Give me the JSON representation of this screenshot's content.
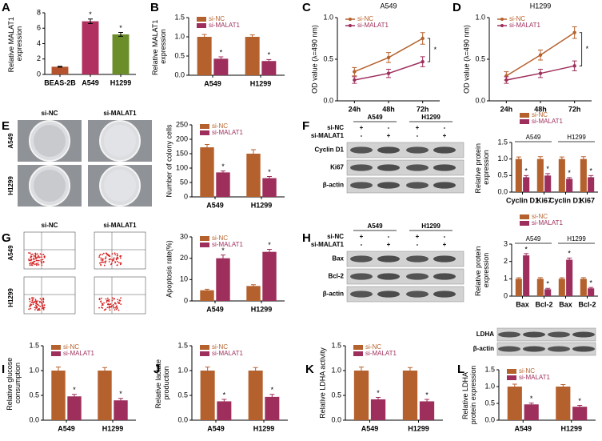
{
  "panel_letters": [
    "A",
    "B",
    "C",
    "D",
    "E",
    "F",
    "G",
    "H",
    "I",
    "J",
    "K",
    "L"
  ],
  "images": {
    "E": {
      "columns": [
        "si-NC",
        "si-MALAT1"
      ],
      "rows": [
        "A549",
        "H1299"
      ]
    },
    "G": {
      "columns": [
        "si-NC",
        "si-MALAT1"
      ],
      "rows": [
        "A549",
        "H1299"
      ]
    },
    "F": {
      "groups": [
        "A549",
        "H1299"
      ],
      "conditions": [
        {
          "name": "si-NC",
          "signs": [
            "+",
            "-",
            "+",
            "-"
          ]
        },
        {
          "name": "si-MALAT1",
          "signs": [
            "-",
            "+",
            "-",
            "+"
          ]
        }
      ],
      "bands": [
        "Cyclin D1",
        "Ki67",
        "β-actin"
      ]
    },
    "H": {
      "groups": [
        "A549",
        "H1299"
      ],
      "conditions": [
        {
          "name": "si-NC",
          "signs": [
            "+",
            "-",
            "+",
            "-"
          ]
        },
        {
          "name": "si-MALAT1",
          "signs": [
            "-",
            "+",
            "-",
            "+"
          ]
        }
      ],
      "bands": [
        "Bax",
        "Bcl-2",
        "β-actin"
      ]
    },
    "L": {
      "bands": [
        "LDHA",
        "β-actin"
      ]
    }
  },
  "chart_data": [
    {
      "type": "bar",
      "ylabel": "Relative MALAT1 expression",
      "categories": [
        "BEAS-2B",
        "A549",
        "H1299"
      ],
      "values": [
        1.0,
        6.9,
        5.2
      ],
      "errors": [
        0.05,
        0.3,
        0.25
      ],
      "colors": [
        "#b5532e",
        "#b0305f",
        "#6b8e2a"
      ],
      "annotations": [
        null,
        "*",
        "*"
      ],
      "ylim": [
        0,
        8
      ],
      "yticks": [
        0,
        2,
        4,
        6,
        8
      ]
    },
    {
      "type": "bar",
      "ylabel": "Relative MALAT1 expression",
      "categories": [
        "A549",
        "H1299"
      ],
      "legend": "upper left",
      "series": [
        {
          "name": "si-NC",
          "color": "#b5612d",
          "values": [
            1.0,
            1.0
          ],
          "errors": [
            0.06,
            0.05
          ]
        },
        {
          "name": "si-MALAT1",
          "color": "#9e2f5c",
          "values": [
            0.43,
            0.37
          ],
          "errors": [
            0.05,
            0.04
          ],
          "annotations": [
            "*",
            "*"
          ]
        }
      ],
      "ylim": [
        0,
        1.5
      ],
      "yticks": [
        {
          "value": 0,
          "label": "0.0"
        },
        {
          "value": 0.5,
          "label": "0.5"
        },
        {
          "value": 1,
          "label": "1.0"
        },
        {
          "value": 1.5,
          "label": "1.5"
        }
      ]
    },
    {
      "type": "line",
      "title": "A549",
      "ylabel": "OD value (λ=490 nm)",
      "categories": [
        "24h",
        "48h",
        "72h"
      ],
      "legend": "upper left",
      "annotation": "*",
      "series": [
        {
          "name": "si-NC",
          "color": "#b5612d",
          "values": [
            0.35,
            0.52,
            0.75
          ],
          "errors": [
            0.05,
            0.06,
            0.07
          ]
        },
        {
          "name": "si-MALAT1",
          "color": "#9e2f5c",
          "values": [
            0.25,
            0.33,
            0.47
          ],
          "errors": [
            0.04,
            0.05,
            0.06
          ]
        }
      ],
      "ylim": [
        0,
        1
      ],
      "yticks": [
        {
          "value": 0,
          "label": "0.0"
        },
        {
          "value": 0.5,
          "label": "0.5"
        },
        {
          "value": 1,
          "label": "1.0"
        }
      ]
    },
    {
      "type": "line",
      "title": "H1299",
      "ylabel": "OD value (λ=490 nm)",
      "categories": [
        "24h",
        "48h",
        "72h"
      ],
      "legend": "upper left",
      "annotation": "*",
      "series": [
        {
          "name": "si-NC",
          "color": "#b5612d",
          "values": [
            0.3,
            0.55,
            0.82
          ],
          "errors": [
            0.05,
            0.06,
            0.07
          ]
        },
        {
          "name": "si-MALAT1",
          "color": "#9e2f5c",
          "values": [
            0.25,
            0.33,
            0.42
          ],
          "errors": [
            0.04,
            0.05,
            0.06
          ]
        }
      ],
      "ylim": [
        0,
        1
      ],
      "yticks": [
        {
          "value": 0,
          "label": "0.0"
        },
        {
          "value": 0.5,
          "label": "0.5"
        },
        {
          "value": 1,
          "label": "1.0"
        }
      ]
    },
    {
      "type": "bar",
      "ylabel": "Number of colony cells",
      "categories": [
        "A549",
        "H1299"
      ],
      "legend": "upper left",
      "series": [
        {
          "name": "si-NC",
          "color": "#b5612d",
          "values": [
            172,
            150
          ],
          "errors": [
            10,
            14
          ]
        },
        {
          "name": "si-MALAT1",
          "color": "#9e2f5c",
          "values": [
            85,
            65
          ],
          "errors": [
            5,
            6
          ],
          "annotations": [
            "*",
            "*"
          ]
        }
      ],
      "ylim": [
        0,
        250
      ],
      "yticks": [
        0,
        50,
        100,
        150,
        200,
        250
      ]
    },
    {
      "type": "bar",
      "ylabel": "Relative protein expression",
      "categories": [
        "Cyclin D1",
        "Ki67",
        "Cyclin D1",
        "Ki67"
      ],
      "groups": [
        "A549",
        "H1299"
      ],
      "legend": "top",
      "series": [
        {
          "name": "si-NC",
          "color": "#b5612d",
          "values": [
            1.0,
            1.0,
            1.0,
            1.0
          ],
          "errors": [
            0.06,
            0.07,
            0.06,
            0.07
          ]
        },
        {
          "name": "si-MALAT1",
          "color": "#9e2f5c",
          "values": [
            0.45,
            0.5,
            0.4,
            0.45
          ],
          "errors": [
            0.05,
            0.06,
            0.04,
            0.05
          ],
          "annotations": [
            "*",
            "*",
            "*",
            "*"
          ]
        }
      ],
      "ylim": [
        0,
        1.5
      ],
      "yticks": [
        {
          "value": 0,
          "label": "0.0"
        },
        {
          "value": 0.5,
          "label": "0.5"
        },
        {
          "value": 1,
          "label": "1.0"
        },
        {
          "value": 1.5,
          "label": "1.5"
        }
      ]
    },
    {
      "type": "bar",
      "ylabel": "Apoptosis rate(%)",
      "categories": [
        "A549",
        "H1299"
      ],
      "legend": "upper left",
      "series": [
        {
          "name": "si-NC",
          "color": "#b5612d",
          "values": [
            5,
            7
          ],
          "errors": [
            0.5,
            0.6
          ]
        },
        {
          "name": "si-MALAT1",
          "color": "#9e2f5c",
          "values": [
            20,
            23
          ],
          "errors": [
            1.5,
            1.2
          ],
          "annotations": [
            "*",
            "*"
          ]
        }
      ],
      "ylim": [
        0,
        30
      ],
      "yticks": [
        0,
        10,
        20,
        30
      ]
    },
    {
      "type": "bar",
      "ylabel": "Relative protein expression",
      "categories": [
        "Bax",
        "Bcl-2",
        "Bax",
        "Bcl-2"
      ],
      "groups": [
        "A549",
        "H1299"
      ],
      "legend": "top",
      "series": [
        {
          "name": "si-NC",
          "color": "#b5612d",
          "values": [
            1.0,
            1.0,
            1.0,
            1.0
          ],
          "errors": [
            0.06,
            0.07,
            0.06,
            0.07
          ]
        },
        {
          "name": "si-MALAT1",
          "color": "#9e2f5c",
          "values": [
            2.35,
            0.4,
            2.1,
            0.45
          ],
          "errors": [
            0.1,
            0.05,
            0.1,
            0.05
          ],
          "annotations": [
            "*",
            "*",
            "*",
            "*"
          ]
        }
      ],
      "ylim": [
        0,
        3
      ],
      "yticks": [
        0,
        1,
        2,
        3
      ]
    },
    {
      "type": "bar",
      "ylabel": "Relative glucose consumption",
      "categories": [
        "A549",
        "H1299"
      ],
      "legend": "upper left",
      "series": [
        {
          "name": "si-NC",
          "color": "#b5612d",
          "values": [
            1.0,
            1.0
          ],
          "errors": [
            0.07,
            0.06
          ]
        },
        {
          "name": "si-MALAT1",
          "color": "#9e2f5c",
          "values": [
            0.48,
            0.4
          ],
          "errors": [
            0.04,
            0.04
          ],
          "annotations": [
            "*",
            "*"
          ]
        }
      ],
      "ylim": [
        0,
        1.5
      ],
      "yticks": [
        {
          "value": 0,
          "label": "0.0"
        },
        {
          "value": 0.5,
          "label": "0.5"
        },
        {
          "value": 1,
          "label": "1.0"
        },
        {
          "value": 1.5,
          "label": "1.5"
        }
      ]
    },
    {
      "type": "bar",
      "ylabel": "Relative lactate production",
      "categories": [
        "A549",
        "H1299"
      ],
      "legend": "upper left",
      "series": [
        {
          "name": "si-NC",
          "color": "#b5612d",
          "values": [
            1.0,
            1.0
          ],
          "errors": [
            0.07,
            0.06
          ]
        },
        {
          "name": "si-MALAT1",
          "color": "#9e2f5c",
          "values": [
            0.38,
            0.47
          ],
          "errors": [
            0.04,
            0.05
          ],
          "annotations": [
            "*",
            "*"
          ]
        }
      ],
      "ylim": [
        0,
        1.5
      ],
      "yticks": [
        {
          "value": 0,
          "label": "0.0"
        },
        {
          "value": 0.5,
          "label": "0.5"
        },
        {
          "value": 1,
          "label": "1.0"
        },
        {
          "value": 1.5,
          "label": "1.5"
        }
      ]
    },
    {
      "type": "bar",
      "ylabel": "Relative LDHA activity",
      "categories": [
        "A549",
        "H1299"
      ],
      "legend": "upper left",
      "series": [
        {
          "name": "si-NC",
          "color": "#b5612d",
          "values": [
            1.0,
            1.0
          ],
          "errors": [
            0.07,
            0.06
          ]
        },
        {
          "name": "si-MALAT1",
          "color": "#9e2f5c",
          "values": [
            0.42,
            0.38
          ],
          "errors": [
            0.04,
            0.04
          ],
          "annotations": [
            "*",
            "*"
          ]
        }
      ],
      "ylim": [
        0,
        1.5
      ],
      "yticks": [
        {
          "value": 0,
          "label": "0.0"
        },
        {
          "value": 0.5,
          "label": "0.5"
        },
        {
          "value": 1,
          "label": "1.0"
        },
        {
          "value": 1.5,
          "label": "1.5"
        }
      ]
    },
    {
      "type": "bar",
      "ylabel": "Relative LDHA protein expression",
      "categories": [
        "A549",
        "H1299"
      ],
      "legend": "upper left",
      "series": [
        {
          "name": "si-NC",
          "color": "#b5612d",
          "values": [
            1.0,
            1.0
          ],
          "errors": [
            0.07,
            0.06
          ]
        },
        {
          "name": "si-MALAT1",
          "color": "#9e2f5c",
          "values": [
            0.47,
            0.4
          ],
          "errors": [
            0.04,
            0.04
          ],
          "annotations": [
            "*",
            "*"
          ]
        }
      ],
      "ylim": [
        0,
        1.5
      ],
      "yticks": [
        {
          "value": 0,
          "label": "0.0"
        },
        {
          "value": 0.5,
          "label": "0.5"
        },
        {
          "value": 1,
          "label": "1.0"
        },
        {
          "value": 1.5,
          "label": "1.5"
        }
      ]
    }
  ]
}
